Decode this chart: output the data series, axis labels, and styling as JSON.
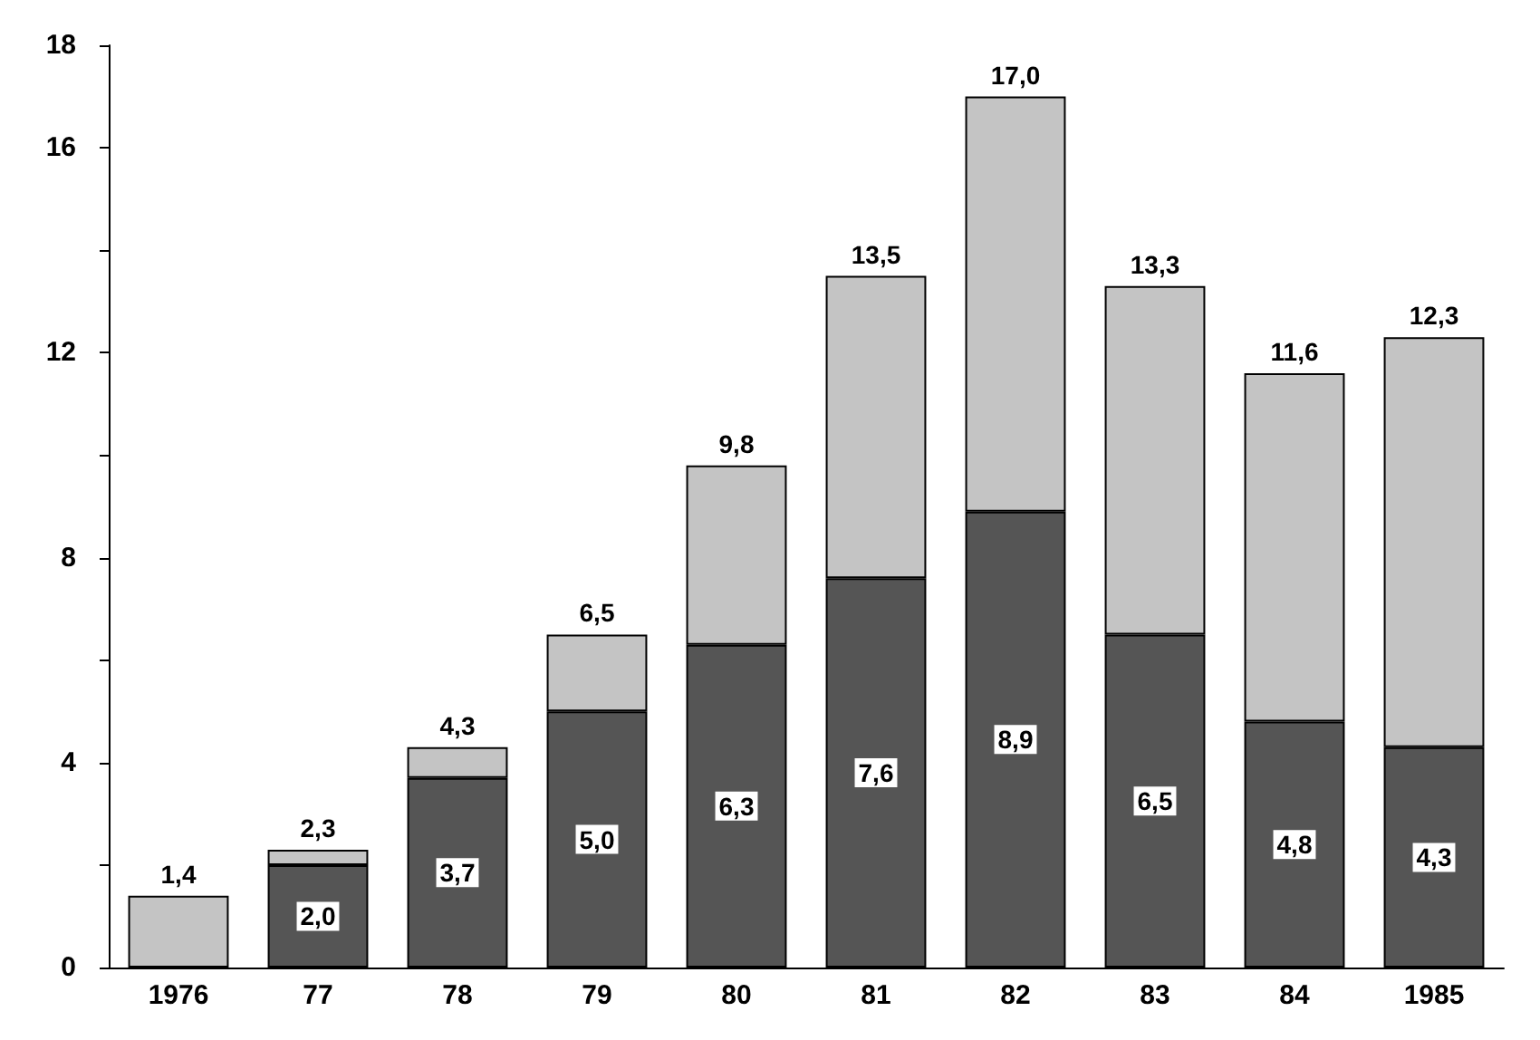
{
  "chart_data": {
    "type": "bar",
    "stacked": true,
    "categories": [
      "1976",
      "77",
      "78",
      "79",
      "80",
      "81",
      "82",
      "83",
      "84",
      "1985"
    ],
    "series": [
      {
        "color": "#555555",
        "values": [
          null,
          2.0,
          3.7,
          5.0,
          6.3,
          7.6,
          8.9,
          6.5,
          4.8,
          4.3
        ],
        "value_labels": [
          null,
          "2,0",
          "3,7",
          "5,0",
          "6,3",
          "7,6",
          "8,9",
          "6,5",
          "4,8",
          "4,3"
        ]
      },
      {
        "color": "#c4c4c4",
        "values": [
          1.4,
          0.3,
          0.6,
          1.5,
          3.5,
          5.9,
          8.1,
          6.8,
          6.8,
          8.0
        ]
      }
    ],
    "totals": [
      "1,4",
      "2,3",
      "4,3",
      "6,5",
      "9,8",
      "13,5",
      "17,0",
      "13,3",
      "11,6",
      "12,3"
    ],
    "ylim": [
      0,
      18
    ],
    "yticks": [
      0,
      {
        "value": 2,
        "label": null
      },
      4,
      {
        "value": 6,
        "label": null
      },
      8,
      {
        "value": 10,
        "label": null
      },
      12,
      {
        "value": 14,
        "label": null
      },
      16,
      18
    ]
  }
}
